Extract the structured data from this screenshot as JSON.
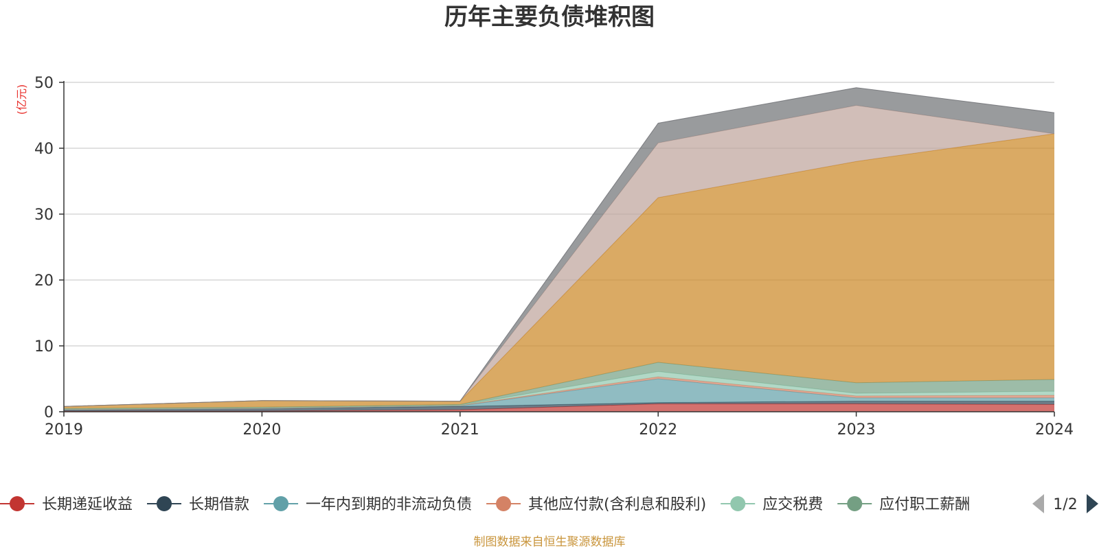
{
  "chart_data": {
    "type": "area",
    "stacked": true,
    "title": "历年主要负债堆积图",
    "unit_label": "(亿元)",
    "x": [
      "2019",
      "2020",
      "2021",
      "2022",
      "2023",
      "2024"
    ],
    "ylim": [
      0,
      50
    ],
    "yticks": [
      "0",
      "10",
      "20",
      "30",
      "40",
      "50"
    ],
    "grid": true,
    "series": [
      {
        "name": "长期递延收益",
        "color": "#c23531",
        "values": [
          0.1,
          0.1,
          0.3,
          1.2,
          1.2,
          1.1
        ]
      },
      {
        "name": "长期借款",
        "color": "#2f4554",
        "values": [
          0.2,
          0.4,
          0.5,
          0.2,
          0.4,
          0.5
        ]
      },
      {
        "name": "一年内到期的非流动负债",
        "color": "#61a0a8",
        "values": [
          0.0,
          0.0,
          0.1,
          3.6,
          0.5,
          0.5
        ]
      },
      {
        "name": "其他应付款(含利息和股利)",
        "color": "#d48265",
        "values": [
          0.05,
          0.05,
          0.05,
          0.3,
          0.3,
          0.4
        ]
      },
      {
        "name": "应交税费",
        "color": "#91c7ae",
        "values": [
          0.05,
          0.05,
          0.05,
          0.8,
          0.4,
          0.6
        ]
      },
      {
        "name": "应付职工薪酬",
        "color": "#749f83",
        "values": [
          0.1,
          0.1,
          0.1,
          1.4,
          1.6,
          1.8
        ]
      },
      {
        "name": "",
        "color": "#ca8622",
        "values": [
          0.3,
          1.0,
          0.5,
          25.0,
          33.6,
          37.3
        ]
      },
      {
        "name": "",
        "color": "#bda29a",
        "values": [
          0.0,
          0.0,
          0.0,
          8.3,
          8.5,
          0.0
        ]
      },
      {
        "name": "",
        "color": "#6e7074",
        "values": [
          0.0,
          0.0,
          0.0,
          3.0,
          2.7,
          3.2
        ]
      }
    ],
    "legend_placement": "bottom",
    "legend_visible": [
      "长期递延收益",
      "长期借款",
      "一年内到期的非流动负债",
      "其他应付款(含利息和股利)",
      "应交税费",
      "应付职工薪酬"
    ],
    "legend_page": "1/2"
  },
  "footer": {
    "source": "制图数据来自恒生聚源数据库"
  },
  "icons": {
    "prev": "triangle-left-icon",
    "next": "triangle-right-icon"
  }
}
